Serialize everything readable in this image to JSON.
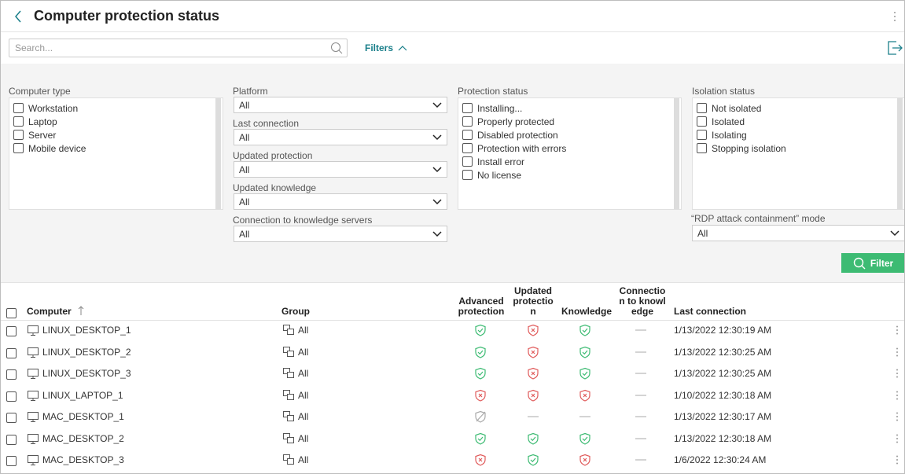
{
  "header": {
    "title": "Computer protection status"
  },
  "search": {
    "placeholder": "Search..."
  },
  "filters_toggle": "Filters",
  "filters": {
    "computer_type": {
      "label": "Computer type",
      "options": [
        "Workstation",
        "Laptop",
        "Server",
        "Mobile device"
      ]
    },
    "selects": [
      {
        "label": "Platform",
        "value": "All"
      },
      {
        "label": "Last connection",
        "value": "All"
      },
      {
        "label": "Updated protection",
        "value": "All"
      },
      {
        "label": "Updated knowledge",
        "value": "All"
      },
      {
        "label": "Connection to knowledge servers",
        "value": "All"
      }
    ],
    "protection_status": {
      "label": "Protection status",
      "options": [
        "Installing...",
        "Properly protected",
        "Disabled protection",
        "Protection with errors",
        "Install error",
        "No license"
      ]
    },
    "isolation_status": {
      "label": "Isolation status",
      "options": [
        "Not isolated",
        "Isolated",
        "Isolating",
        "Stopping isolation"
      ]
    },
    "rdp": {
      "label": "“RDP attack containment” mode",
      "value": "All"
    },
    "button": "Filter"
  },
  "table": {
    "columns": [
      "Computer",
      "Group",
      "Advanced protection",
      "Updated protection",
      "Knowledge",
      "Connection to knowledge",
      "Last connection"
    ],
    "rows": [
      [
        "LINUX_DESKTOP_1",
        "All",
        "1/13/2022 12:30:19 AM"
      ],
      [
        "LINUX_DESKTOP_2",
        "All",
        "1/13/2022 12:30:25 AM"
      ],
      [
        "LINUX_DESKTOP_3",
        "All",
        "1/13/2022 12:30:25 AM"
      ],
      [
        "LINUX_LAPTOP_1",
        "All",
        "1/10/2022 12:30:18 AM"
      ],
      [
        "MAC_DESKTOP_1",
        "All",
        "1/13/2022 12:30:17 AM"
      ],
      [
        "MAC_DESKTOP_2",
        "All",
        "1/13/2022 12:30:18 AM"
      ],
      [
        "MAC_DESKTOP_3",
        "All",
        "1/6/2022 12:30:24 AM"
      ]
    ]
  }
}
